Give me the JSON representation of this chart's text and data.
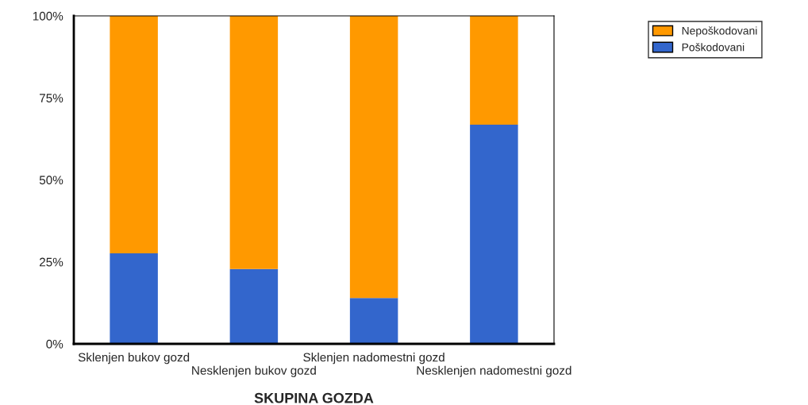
{
  "chart_data": {
    "type": "bar",
    "stacked": true,
    "xlabel": "SKUPINA GOZDA",
    "categories": [
      "Sklenjen bukov gozd",
      "Nesklenjen bukov gozd",
      "Sklenjen nadomestni gozd",
      "Nesklenjen nadomestni gozd"
    ],
    "series": [
      {
        "name": "Poškodovani",
        "color": "#3366cc",
        "values": [
          27.6,
          22.8,
          14.0,
          66.8
        ]
      },
      {
        "name": "Nepoškodovani",
        "color": "#ff9900",
        "values": [
          72.4,
          77.2,
          86.0,
          33.2
        ]
      }
    ],
    "ylim": [
      0,
      100
    ],
    "yticks": [
      {
        "value": 0,
        "label": "0%"
      },
      {
        "value": 25,
        "label": "25%"
      },
      {
        "value": 50,
        "label": "50%"
      },
      {
        "value": 75,
        "label": "75%"
      },
      {
        "value": 100,
        "label": "100%"
      }
    ],
    "grid": false,
    "legend": "top right"
  }
}
